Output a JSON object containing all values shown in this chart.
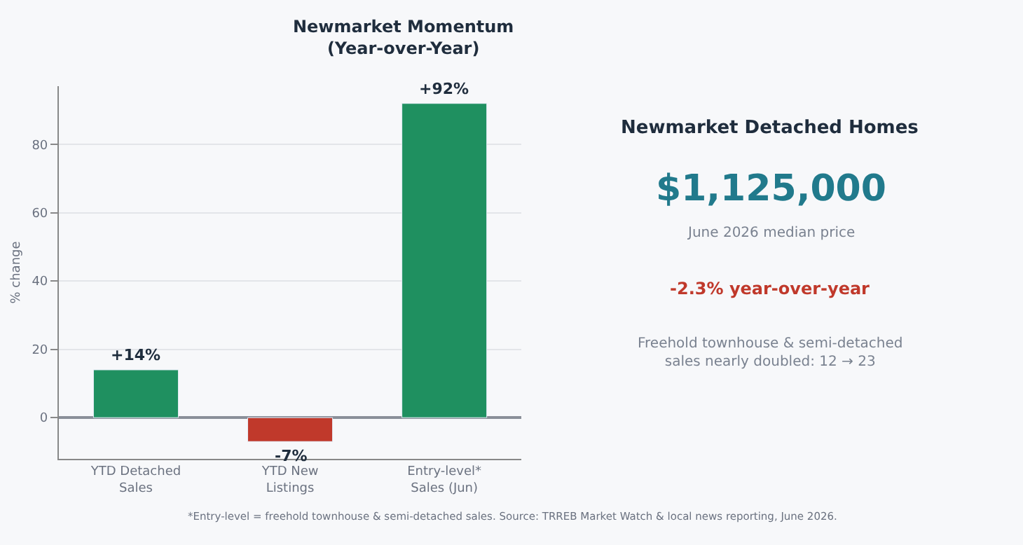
{
  "chart_data": [
    {
      "type": "bar",
      "title": "Newmarket Momentum\n(Year-over-Year)",
      "ylabel": "% change",
      "categories": [
        "YTD Detached\nSales",
        "YTD New\nListings",
        "Entry-level*\nSales (Jun)"
      ],
      "values": [
        14,
        -7,
        92
      ],
      "colors": [
        "#1f9060",
        "#c0392b",
        "#1f9060"
      ],
      "value_labels": [
        "+14%",
        "-7%",
        "+92%"
      ],
      "ylim": [
        -12,
        97
      ],
      "yticks": [
        0,
        20,
        40,
        60,
        80
      ],
      "grid": "y",
      "annotations": [
        "*Entry-level = freehold townhouse & semi-detached sales. Source: TRREB Market Watch & local news reporting, June 2026."
      ]
    },
    {
      "type": "other",
      "title": "Newmarket Detached Homes",
      "annotations": [
        "$1,125,000",
        "June 2026 median price",
        "-2.3% year-over-year",
        "Freehold townhouse & semi-detached\nsales nearly doubled: 12 → 23"
      ]
    }
  ]
}
